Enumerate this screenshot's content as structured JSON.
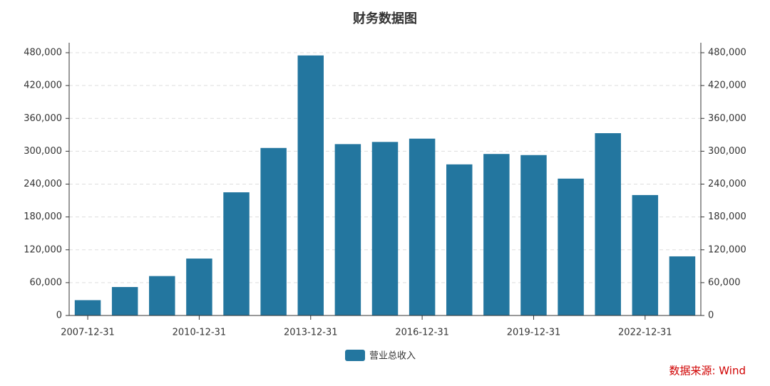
{
  "chart_data": {
    "type": "bar",
    "title": "财务数据图",
    "categories": [
      "2007-12-31",
      null,
      null,
      "2010-12-31",
      null,
      null,
      "2013-12-31",
      null,
      null,
      "2016-12-31",
      null,
      null,
      "2019-12-31",
      null,
      null,
      "2022-12-31",
      null
    ],
    "series": [
      {
        "name": "营业总收入",
        "color": "#23769f",
        "values": [
          28000,
          52000,
          72000,
          104000,
          225000,
          306000,
          475000,
          313000,
          317000,
          323000,
          276000,
          295000,
          293000,
          250000,
          333000,
          220000,
          108000
        ]
      }
    ],
    "ylim": [
      0,
      480000
    ],
    "yticks": [
      0,
      {
        "value": 60000,
        "label": "60,000"
      },
      {
        "value": 120000,
        "label": "120,000"
      },
      {
        "value": 180000,
        "label": "180,000"
      },
      {
        "value": 240000,
        "label": "240,000"
      },
      {
        "value": 300000,
        "label": "300,000"
      },
      {
        "value": 360000,
        "label": "360,000"
      },
      {
        "value": 420000,
        "label": "420,000"
      },
      {
        "value": 480000,
        "label": "480,000"
      }
    ],
    "y2lim": [
      0,
      480000
    ],
    "y2ticks": [
      0,
      {
        "value": 60000,
        "label": "60,000"
      },
      {
        "value": 120000,
        "label": "120,000"
      },
      {
        "value": 180000,
        "label": "180,000"
      },
      {
        "value": 240000,
        "label": "240,000"
      },
      {
        "value": 300000,
        "label": "300,000"
      },
      {
        "value": 360000,
        "label": "360,000"
      },
      {
        "value": 420000,
        "label": "420,000"
      },
      {
        "value": 480000,
        "label": "480,000"
      }
    ],
    "grid": true,
    "legend": "bottom",
    "source": "数据来源: Wind"
  }
}
